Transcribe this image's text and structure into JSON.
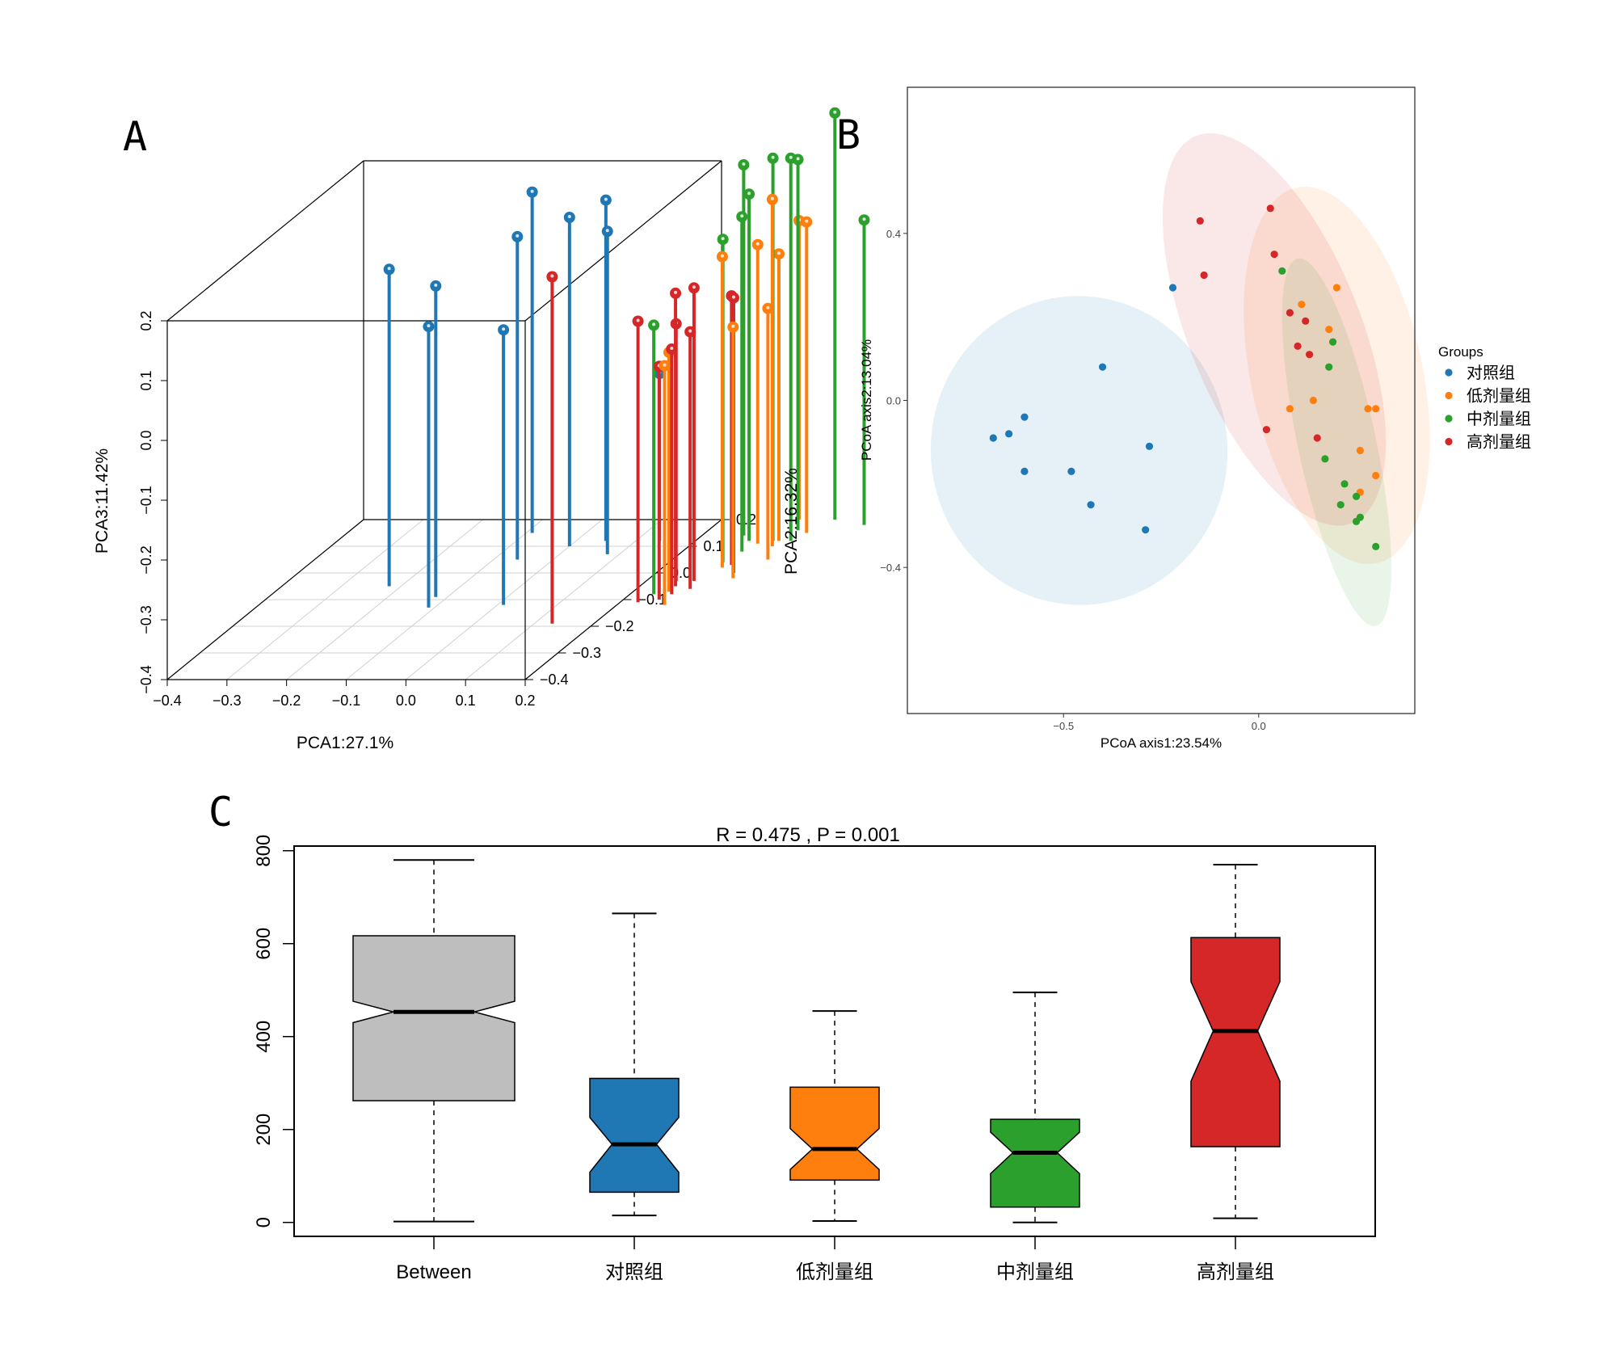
{
  "figure": {
    "panels": [
      "A",
      "B",
      "C"
    ]
  },
  "colors": {
    "control": "#1f77b4",
    "low": "#ff7f0e",
    "mid": "#2ca02c",
    "high": "#d62728",
    "between": "#bebebe"
  },
  "chart_data": [
    {
      "panel": "A",
      "type": "scatter",
      "subtype": "3d-scatter-with-drop-lines",
      "xlabel": "PCA1:27.1%",
      "ylabel": "PCA2:16.32%",
      "zlabel": "PCA3:11.42%",
      "xlim": [
        -0.4,
        0.2
      ],
      "ylim": [
        -0.4,
        0.2
      ],
      "zlim": [
        -0.4,
        0.2
      ],
      "x_ticks": [
        "-0.4",
        "-0.3",
        "-0.2",
        "-0.1",
        "0.0",
        "0.1",
        "0.2"
      ],
      "y_ticks": [
        "-0.4",
        "-0.3",
        "-0.2",
        "-0.1",
        "0.0",
        "0.1",
        "0.2"
      ],
      "z_ticks": [
        "-0.4",
        "-0.3",
        "-0.2",
        "-0.1",
        "0.0",
        "0.1",
        "0.2"
      ],
      "series": [
        {
          "name": "对照组",
          "color_key": "control",
          "points": [
            [
              -0.22,
              -0.05,
              0.13
            ],
            [
              -0.12,
              -0.09,
              0.12
            ],
            [
              -0.11,
              -0.13,
              0.07
            ],
            [
              -0.06,
              0.05,
              0.14
            ],
            [
              0.0,
              0.1,
              0.15
            ],
            [
              0.05,
              0.12,
              0.17
            ],
            [
              0.08,
              0.07,
              0.14
            ],
            [
              0.01,
              -0.12,
              0.06
            ],
            [
              -0.09,
              0.15,
              0.17
            ],
            [
              0.14,
              0.12,
              -0.12
            ]
          ]
        },
        {
          "name": "低剂量组",
          "color_key": "low",
          "points": [
            [
              0.26,
              -0.07,
              0.0
            ],
            [
              0.28,
              -0.12,
              0.0
            ],
            [
              0.34,
              -0.02,
              0.02
            ],
            [
              0.34,
              0.1,
              0.18
            ],
            [
              0.31,
              0.11,
              0.1
            ],
            [
              0.34,
              0.12,
              0.08
            ],
            [
              0.33,
              0.2,
              0.1
            ],
            [
              0.36,
              0.05,
              0.02
            ],
            [
              0.3,
              0.02,
              0.12
            ],
            [
              0.37,
              0.15,
              0.12
            ]
          ]
        },
        {
          "name": "中剂量组",
          "color_key": "mid",
          "points": [
            [
              0.27,
              0.14,
              0.22
            ],
            [
              0.33,
              0.12,
              0.24
            ],
            [
              0.35,
              0.16,
              0.22
            ],
            [
              0.39,
              0.2,
              0.28
            ],
            [
              0.29,
              0.12,
              0.18
            ],
            [
              0.29,
              0.04,
              0.14
            ],
            [
              0.3,
              0.08,
              0.16
            ],
            [
              0.36,
              0.12,
              0.24
            ],
            [
              0.45,
              0.18,
              0.11
            ],
            [
              0.24,
              -0.08,
              0.05
            ]
          ]
        },
        {
          "name": "高剂量组",
          "color_key": "high",
          "points": [
            [
              0.13,
              -0.19,
              0.18
            ],
            [
              0.25,
              -0.03,
              0.03
            ],
            [
              0.26,
              -0.1,
              -0.01
            ],
            [
              0.27,
              -0.08,
              0.01
            ],
            [
              0.29,
              -0.06,
              0.03
            ],
            [
              0.23,
              -0.11,
              0.07
            ],
            [
              0.31,
              0.03,
              0.05
            ],
            [
              0.33,
              0.0,
              0.06
            ],
            [
              0.26,
              -0.05,
              0.09
            ],
            [
              0.28,
              -0.03,
              0.09
            ]
          ]
        }
      ]
    },
    {
      "panel": "B",
      "type": "scatter",
      "subtype": "pcoa-with-confidence-ellipses",
      "xlabel": "PCoA axis1:23.54%",
      "ylabel": "PCoA axis2:13.04%",
      "xlim": [
        -0.9,
        0.4
      ],
      "ylim": [
        -0.75,
        0.75
      ],
      "x_ticks": [
        -0.5,
        0.0
      ],
      "x_tick_labels": [
        "-0.5",
        "0.0"
      ],
      "y_ticks": [
        -0.4,
        0.0,
        0.4
      ],
      "y_tick_labels": [
        "-0.4",
        "0.0",
        "0.4"
      ],
      "legend_title": "Groups",
      "legend_position": "right",
      "series": [
        {
          "name": "对照组",
          "color_key": "control",
          "points": [
            [
              -0.22,
              0.27
            ],
            [
              -0.4,
              0.08
            ],
            [
              -0.6,
              -0.04
            ],
            [
              -0.64,
              -0.08
            ],
            [
              -0.68,
              -0.09
            ],
            [
              -0.6,
              -0.17
            ],
            [
              -0.48,
              -0.17
            ],
            [
              -0.28,
              -0.11
            ],
            [
              -0.43,
              -0.25
            ],
            [
              -0.29,
              -0.31
            ]
          ],
          "ellipse": {
            "cx": -0.46,
            "cy": -0.12,
            "rx": 0.38,
            "ry": 0.37,
            "angle": -5
          }
        },
        {
          "name": "低剂量组",
          "color_key": "low",
          "points": [
            [
              0.2,
              0.27
            ],
            [
              0.11,
              0.23
            ],
            [
              0.18,
              0.17
            ],
            [
              0.14,
              0.0
            ],
            [
              0.08,
              -0.02
            ],
            [
              0.28,
              -0.02
            ],
            [
              0.3,
              -0.02
            ],
            [
              0.26,
              -0.12
            ],
            [
              0.3,
              -0.18
            ],
            [
              0.26,
              -0.22
            ]
          ],
          "ellipse": {
            "cx": 0.2,
            "cy": 0.06,
            "rx": 0.22,
            "ry": 0.46,
            "angle": -12
          }
        },
        {
          "name": "中剂量组",
          "color_key": "mid",
          "points": [
            [
              0.06,
              0.31
            ],
            [
              0.19,
              0.14
            ],
            [
              0.18,
              0.08
            ],
            [
              0.17,
              -0.14
            ],
            [
              0.22,
              -0.2
            ],
            [
              0.25,
              -0.23
            ],
            [
              0.21,
              -0.25
            ],
            [
              0.26,
              -0.28
            ],
            [
              0.25,
              -0.29
            ],
            [
              0.3,
              -0.35
            ]
          ],
          "ellipse": {
            "cx": 0.2,
            "cy": -0.1,
            "rx": 0.1,
            "ry": 0.45,
            "angle": -12
          }
        },
        {
          "name": "高剂量组",
          "color_key": "high",
          "points": [
            [
              0.03,
              0.46
            ],
            [
              -0.15,
              0.43
            ],
            [
              0.04,
              0.35
            ],
            [
              -0.14,
              0.3
            ],
            [
              0.08,
              0.21
            ],
            [
              0.12,
              0.19
            ],
            [
              0.1,
              0.13
            ],
            [
              0.13,
              0.11
            ],
            [
              0.02,
              -0.07
            ],
            [
              0.15,
              -0.09
            ]
          ],
          "ellipse": {
            "cx": 0.04,
            "cy": 0.17,
            "rx": 0.22,
            "ry": 0.5,
            "angle": -22
          }
        }
      ]
    },
    {
      "panel": "C",
      "type": "box",
      "subtype": "notched-boxplot (ANOSIM)",
      "title": "R =  0.475 ,  P =  0.001",
      "xlabel": "",
      "ylabel": "",
      "ylim": [
        -30,
        810
      ],
      "y_ticks": [
        "0",
        "200",
        "400",
        "600",
        "800"
      ],
      "categories": [
        "Between",
        "对照组",
        "低剂量组",
        "中剂量组",
        "高剂量组"
      ],
      "boxes": [
        {
          "name": "Between",
          "color_key": "between",
          "min": 2,
          "q1": 262,
          "median": 453,
          "q3": 617,
          "max": 780,
          "notch_low": 430,
          "notch_high": 476
        },
        {
          "name": "对照组",
          "color_key": "control",
          "min": 15,
          "q1": 65,
          "median": 168,
          "q3": 310,
          "max": 665,
          "notch_low": 108,
          "notch_high": 226
        },
        {
          "name": "低剂量组",
          "color_key": "low",
          "min": 3,
          "q1": 91,
          "median": 158,
          "q3": 291,
          "max": 455,
          "notch_low": 114,
          "notch_high": 202
        },
        {
          "name": "中剂量组",
          "color_key": "mid",
          "min": 0,
          "q1": 33,
          "median": 150,
          "q3": 222,
          "max": 495,
          "notch_low": 105,
          "notch_high": 194
        },
        {
          "name": "高剂量组",
          "color_key": "high",
          "min": 9,
          "q1": 163,
          "median": 412,
          "q3": 613,
          "max": 770,
          "notch_low": 304,
          "notch_high": 518
        }
      ]
    }
  ]
}
